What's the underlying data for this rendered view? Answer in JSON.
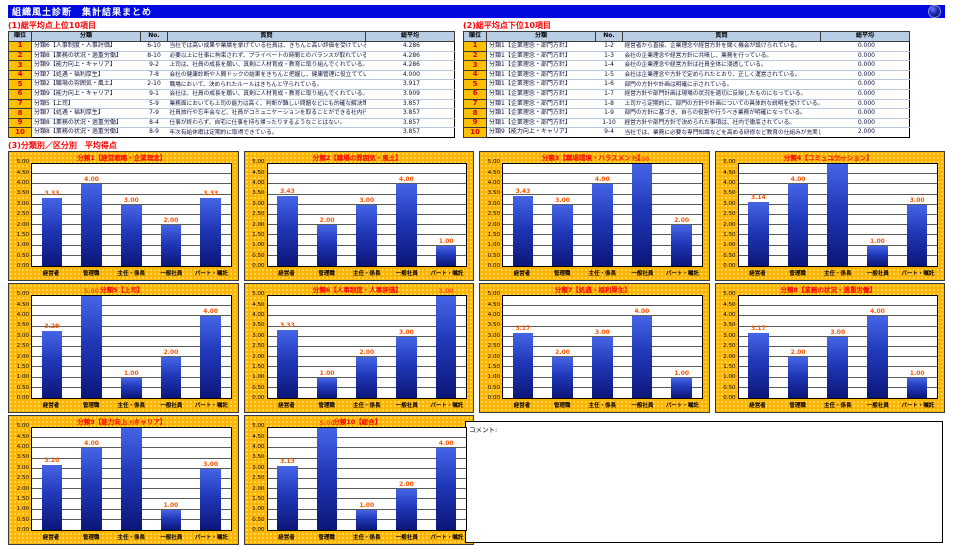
{
  "page": {
    "title": "組織風土診断　集計結果まとめ"
  },
  "top10": {
    "heading": "(1)総平均点上位10項目",
    "columns": [
      "順位",
      "分類",
      "No.",
      "質問",
      "総平均"
    ],
    "rows": [
      [
        "1",
        "分類6【人事制度・人事評価】",
        "6-10",
        "当社では高い成果や業績を挙げている社員は、きちんと高い評価を受けている。",
        "4.286"
      ],
      [
        "2",
        "分類8【業務の状況・過重労働】",
        "8-10",
        "必要以上に仕事に拘束されず、プライベートの時間とのバランスが取れている。",
        "4.286"
      ],
      [
        "3",
        "分類9【能力向上・キャリア】",
        "9-2",
        "上司は、社員の成長を願い、真剣に人材育成・教育に取り組んでくれている。",
        "4.286"
      ],
      [
        "4",
        "分類7【処遇・福利厚生】",
        "7-8",
        "会社の健康診断や人間ドックの結果をきちんと把握し、健康管理に役立てている。",
        "4.000"
      ],
      [
        "5",
        "分類2【職場の雰囲気・風土】",
        "2-10",
        "職場において、決められたルールはきちんと守られている。",
        "3.917"
      ],
      [
        "6",
        "分類9【能力向上・キャリア】",
        "9-1",
        "会社は、社員の成長を願い、真剣に人材育成・教育に取り組んでくれている。",
        "3.909"
      ],
      [
        "7",
        "分類5【上司】",
        "5-9",
        "業務面においても上司の能力は高く、判断が難しい問題などにも的確な解決策を提示してくれる。",
        "3.857"
      ],
      [
        "8",
        "分類7【処遇・福利厚生】",
        "7-9",
        "社員旅行や忘年会など、社員がコミュニケーションを取ることができる社内行事を増やして欲しい。",
        "3.857"
      ],
      [
        "9",
        "分類8【業務の状況・過重労働】",
        "8-4",
        "仕事が終わらず、自宅に仕事を持ち帰ったりするようなことはない。",
        "3.857"
      ],
      [
        "10",
        "分類8【業務の状況・過重労働】",
        "8-9",
        "年次有給休暇は定期的に取得できている。",
        "3.857"
      ]
    ]
  },
  "bottom10": {
    "heading": "(2)総平均点下位10項目",
    "columns": [
      "順位",
      "分類",
      "No.",
      "質問",
      "総平均"
    ],
    "rows": [
      [
        "1",
        "分類1【企業理念・部門方針】",
        "1-2",
        "経営者から直接、企業理念や経営方針を聞く機会が設けられている。",
        "0.000"
      ],
      [
        "2",
        "分類1【企業理念・部門方針】",
        "1-3",
        "会社の企業理念や経営方針に共鳴し、業務を行っている。",
        "0.000"
      ],
      [
        "3",
        "分類1【企業理念・部門方針】",
        "1-4",
        "会社の企業理念や経営方針は社員全体に浸透している。",
        "0.000"
      ],
      [
        "4",
        "分類1【企業理念・部門方針】",
        "1-5",
        "会社は企業理念や方針で定められたとおり、正しく運営されている。",
        "0.000"
      ],
      [
        "5",
        "分類1【企業理念・部門方針】",
        "1-6",
        "部門の方針や計画は明確に示されている。",
        "0.000"
      ],
      [
        "6",
        "分類1【企業理念・部門方針】",
        "1-7",
        "経営方針や部門計画は現場の状況を適切に反映したものになっている。",
        "0.000"
      ],
      [
        "7",
        "分類1【企業理念・部門方針】",
        "1-8",
        "上司から定期的に、部門の方針や計画についての具体的な説明を受けている。",
        "0.000"
      ],
      [
        "8",
        "分類1【企業理念・部門方針】",
        "1-9",
        "部門の方針に基づき、自らの役割や行うべき業務が明確になっている。",
        "0.000"
      ],
      [
        "9",
        "分類1【企業理念・部門方針】",
        "1-10",
        "経営方針や部門方針で決められた事項は、社内で徹底されている。",
        "0.000"
      ],
      [
        "10",
        "分類9【能力向上・キャリア】",
        "9-4",
        "当社では、業務に必要な専門知識などを高める研修など教育の仕組みが充実している。",
        "2.000"
      ]
    ]
  },
  "charts_section": {
    "heading": "(3)分類別／区分別　平均得点"
  },
  "comment": {
    "label": "コメント:"
  },
  "colors": {
    "title_bar": "#0009E0",
    "heading_red": "#FF0000",
    "table_header_bg": "#B9CDE5",
    "rank_cell_bg": "#FFC000",
    "rank_cell_text": "#E00000",
    "chart_frame": "#FFB400",
    "bar_top": "#4565E6",
    "bar_bottom": "#0C1679",
    "value_label": "#FF5400"
  },
  "chart_data": [
    {
      "type": "bar",
      "title": "分類1【経営戦略・企業理念】",
      "categories": [
        "経営者",
        "管理職",
        "主任・係長",
        "一般社員",
        "パート・嘱託"
      ],
      "values": [
        3.33,
        4.0,
        3.0,
        2.0,
        3.33
      ],
      "ylim": [
        0,
        5
      ],
      "ytick_step": 0.5,
      "grid": true,
      "legend": false
    },
    {
      "type": "bar",
      "title": "分類2【職場の雰囲気・風土】",
      "categories": [
        "経営者",
        "管理職",
        "主任・係長",
        "一般社員",
        "パート・嘱託"
      ],
      "values": [
        3.43,
        2.0,
        3.0,
        4.0,
        1.0
      ],
      "ylim": [
        0,
        5
      ],
      "ytick_step": 0.5,
      "grid": true,
      "legend": false
    },
    {
      "type": "bar",
      "title": "分類3【職場環境・ハラスメント】",
      "categories": [
        "経営者",
        "管理職",
        "主任・係長",
        "一般社員",
        "パート・嘱託"
      ],
      "values": [
        3.43,
        3.0,
        4.0,
        5.0,
        2.0
      ],
      "ylim": [
        0,
        5
      ],
      "ytick_step": 0.5,
      "grid": true,
      "legend": false
    },
    {
      "type": "bar",
      "title": "分類4【コミュニケーション】",
      "categories": [
        "経営者",
        "管理職",
        "主任・係長",
        "一般社員",
        "パート・嘱託"
      ],
      "values": [
        3.14,
        4.0,
        5.0,
        1.0,
        3.0
      ],
      "ylim": [
        0,
        5
      ],
      "ytick_step": 0.5,
      "grid": true,
      "legend": false
    },
    {
      "type": "bar",
      "title": "分類5【上司】",
      "categories": [
        "経営者",
        "管理職",
        "主任・係長",
        "一般社員",
        "パート・嘱託"
      ],
      "values": [
        3.29,
        5.0,
        1.0,
        2.0,
        4.0
      ],
      "ylim": [
        0,
        5
      ],
      "ytick_step": 0.5,
      "grid": true,
      "legend": false
    },
    {
      "type": "bar",
      "title": "分類6【人事制度・人事評価】",
      "categories": [
        "経営者",
        "管理職",
        "主任・係長",
        "一般社員",
        "パート・嘱託"
      ],
      "values": [
        3.33,
        1.0,
        2.0,
        3.0,
        5.0
      ],
      "ylim": [
        0,
        5
      ],
      "ytick_step": 0.5,
      "grid": true,
      "legend": false
    },
    {
      "type": "bar",
      "title": "分類7【処遇・福利厚生】",
      "categories": [
        "経営者",
        "管理職",
        "主任・係長",
        "一般社員",
        "パート・嘱託"
      ],
      "values": [
        3.17,
        2.0,
        3.0,
        4.0,
        1.0
      ],
      "ylim": [
        0,
        5
      ],
      "ytick_step": 0.5,
      "grid": true,
      "legend": false
    },
    {
      "type": "bar",
      "title": "分類8【業務の状況・過重労働】",
      "categories": [
        "経営者",
        "管理職",
        "主任・係長",
        "一般社員",
        "パート・嘱託"
      ],
      "values": [
        3.17,
        2.0,
        3.0,
        4.0,
        1.0
      ],
      "ylim": [
        0,
        5
      ],
      "ytick_step": 0.5,
      "grid": true,
      "legend": false
    },
    {
      "type": "bar",
      "title": "分類9【能力向上・キャリア】",
      "categories": [
        "経営者",
        "管理職",
        "主任・係長",
        "一般社員",
        "パート・嘱託"
      ],
      "values": [
        3.2,
        4.0,
        5.0,
        1.0,
        3.0
      ],
      "ylim": [
        0,
        5
      ],
      "ytick_step": 0.5,
      "grid": true,
      "legend": false
    },
    {
      "type": "bar",
      "title": "分類10【総合】",
      "categories": [
        "経営者",
        "管理職",
        "主任・係長",
        "一般社員",
        "パート・嘱託"
      ],
      "values": [
        3.13,
        5.0,
        1.0,
        2.0,
        4.0
      ],
      "ylim": [
        0,
        5
      ],
      "ytick_step": 0.5,
      "grid": true,
      "legend": false
    }
  ]
}
